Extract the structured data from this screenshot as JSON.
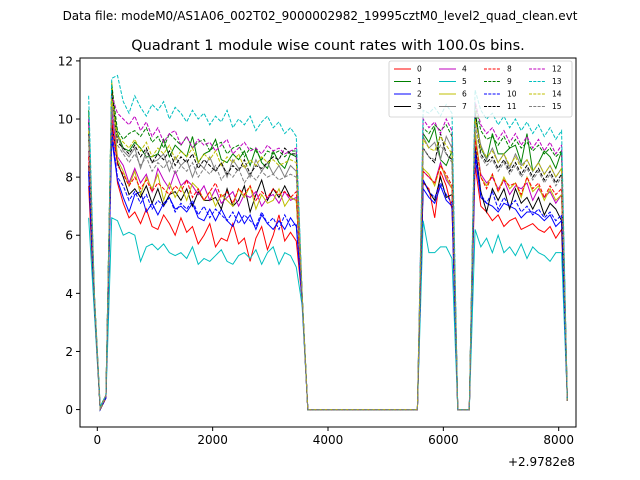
{
  "suptitle": "Data file: modeM0/AS1A06_002T02_9000002982_19995cztM0_level2_quad_clean.evt",
  "chart_data": {
    "type": "line",
    "title": "Quadrant 1 module wise count rates with 100.0s bins.",
    "xlabel": "",
    "ylabel": "",
    "x_offset_label": "+2.9782e8",
    "xlim": [
      -300,
      8300
    ],
    "ylim": [
      -0.6,
      12.1
    ],
    "xticks": [
      0,
      2000,
      4000,
      6000,
      8000
    ],
    "xtick_labels": [
      "0",
      "2000",
      "4000",
      "6000",
      "8000"
    ],
    "yticks": [
      0,
      2,
      4,
      6,
      8,
      10,
      12
    ],
    "ytick_labels": [
      "0",
      "2",
      "4",
      "6",
      "8",
      "10",
      "12"
    ],
    "legend_position": "top-right",
    "legend_columns": 4,
    "x": [
      -150,
      -50,
      50,
      150,
      250,
      350,
      450,
      550,
      650,
      750,
      850,
      950,
      1050,
      1150,
      1250,
      1350,
      1450,
      1550,
      1650,
      1750,
      1850,
      1950,
      2050,
      2150,
      2250,
      2350,
      2450,
      2550,
      2650,
      2750,
      2850,
      2950,
      3050,
      3150,
      3250,
      3350,
      3450,
      3550,
      3650,
      5550,
      5650,
      5750,
      5850,
      5950,
      6050,
      6150,
      6250,
      6350,
      6450,
      6550,
      6650,
      6750,
      6850,
      6950,
      7050,
      7150,
      7250,
      7350,
      7450,
      7550,
      7650,
      7750,
      7850,
      7950,
      8050,
      8150
    ],
    "series": [
      {
        "name": "0",
        "color": "#ff0000",
        "dash": false,
        "values": [
          7.7,
          3.5,
          0.0,
          0.4,
          9.7,
          7.8,
          7.1,
          6.6,
          6.8,
          6.4,
          6.9,
          6.3,
          6.2,
          6.7,
          6.4,
          6.0,
          6.6,
          6.1,
          6.3,
          5.7,
          6.0,
          6.4,
          5.6,
          5.9,
          5.8,
          6.4,
          5.7,
          5.9,
          5.1,
          5.9,
          6.3,
          5.5,
          6.0,
          6.7,
          5.8,
          6.1,
          5.8,
          3.8,
          0.0,
          0.0,
          7.8,
          7.6,
          6.6,
          8.2,
          7.7,
          6.9,
          0.0,
          0.0,
          0.0,
          8.4,
          7.0,
          6.8,
          6.5,
          6.7,
          6.3,
          6.5,
          6.6,
          6.2,
          6.3,
          6.4,
          6.2,
          6.1,
          6.3,
          5.9,
          6.2,
          0.3
        ]
      },
      {
        "name": "1",
        "color": "#008000",
        "dash": false,
        "values": [
          10.3,
          3.9,
          0.1,
          0.5,
          10.8,
          9.5,
          9.0,
          8.9,
          9.2,
          9.0,
          8.7,
          8.7,
          8.8,
          9.3,
          8.7,
          9.1,
          8.9,
          8.7,
          9.4,
          8.5,
          8.8,
          8.9,
          9.3,
          8.6,
          8.5,
          8.8,
          8.6,
          8.9,
          8.4,
          9.0,
          8.5,
          8.3,
          8.9,
          8.5,
          8.3,
          8.8,
          8.7,
          4.0,
          0.0,
          0.0,
          9.5,
          9.2,
          9.7,
          8.6,
          8.4,
          8.9,
          0.0,
          0.0,
          0.0,
          10.3,
          9.0,
          8.6,
          9.5,
          8.8,
          8.8,
          9.0,
          9.1,
          8.5,
          9.5,
          8.2,
          8.5,
          8.9,
          8.7,
          8.3,
          8.9,
          0.3
        ]
      },
      {
        "name": "2",
        "color": "#0000ff",
        "dash": false,
        "values": [
          8.1,
          3.7,
          0.0,
          0.4,
          9.3,
          7.9,
          7.3,
          6.8,
          7.4,
          7.5,
          6.8,
          7.1,
          6.7,
          7.1,
          7.3,
          6.9,
          7.0,
          6.8,
          7.1,
          6.6,
          6.5,
          6.9,
          6.5,
          6.9,
          6.5,
          6.3,
          6.8,
          6.4,
          6.7,
          6.2,
          6.7,
          6.4,
          6.2,
          6.5,
          6.2,
          6.6,
          6.3,
          3.8,
          0.0,
          0.0,
          7.6,
          7.3,
          7.1,
          7.7,
          7.2,
          7.0,
          0.0,
          0.0,
          0.0,
          8.7,
          7.3,
          7.1,
          7.0,
          6.8,
          7.1,
          7.0,
          6.9,
          6.6,
          6.8,
          6.8,
          6.7,
          6.5,
          6.7,
          6.3,
          6.5,
          0.3
        ]
      },
      {
        "name": "3",
        "color": "#000000",
        "dash": false,
        "values": [
          8.4,
          3.7,
          0.0,
          0.4,
          9.9,
          8.5,
          8.0,
          7.4,
          7.6,
          7.3,
          7.7,
          7.1,
          7.6,
          7.0,
          7.4,
          7.5,
          7.2,
          7.6,
          7.0,
          7.5,
          7.2,
          7.2,
          7.3,
          6.9,
          7.6,
          7.0,
          7.2,
          7.7,
          6.8,
          7.4,
          7.9,
          7.2,
          7.6,
          7.3,
          7.7,
          7.3,
          7.2,
          3.9,
          0.0,
          0.0,
          7.9,
          7.5,
          7.2,
          8.0,
          7.3,
          7.4,
          0.0,
          0.0,
          0.0,
          9.1,
          7.5,
          6.8,
          7.6,
          7.2,
          7.6,
          6.9,
          7.6,
          7.1,
          7.3,
          6.9,
          7.3,
          6.7,
          7.1,
          6.9,
          6.5,
          0.3
        ]
      },
      {
        "name": "4",
        "color": "#bf00bf",
        "dash": false,
        "values": [
          8.9,
          3.8,
          0.0,
          0.4,
          10.3,
          8.7,
          8.4,
          7.8,
          8.3,
          7.8,
          8.1,
          7.5,
          8.3,
          7.9,
          7.6,
          8.2,
          7.7,
          7.9,
          7.7,
          7.4,
          7.7,
          7.2,
          7.6,
          7.1,
          7.3,
          7.5,
          7.0,
          7.4,
          7.3,
          7.5,
          7.0,
          7.3,
          7.4,
          7.1,
          7.5,
          7.2,
          7.3,
          3.9,
          0.0,
          0.0,
          8.2,
          8.0,
          7.8,
          8.5,
          7.9,
          7.6,
          0.0,
          0.0,
          0.0,
          9.4,
          8.1,
          7.8,
          8.0,
          7.6,
          7.9,
          7.4,
          7.7,
          7.6,
          7.8,
          7.2,
          7.6,
          7.3,
          7.5,
          7.1,
          7.4,
          0.3
        ]
      },
      {
        "name": "5",
        "color": "#00bfbf",
        "dash": false,
        "values": [
          6.6,
          3.3,
          0.0,
          0.4,
          6.6,
          6.5,
          6.0,
          6.1,
          6.0,
          5.1,
          5.6,
          5.7,
          5.5,
          5.7,
          5.4,
          5.3,
          5.4,
          5.2,
          5.6,
          5.0,
          5.2,
          5.1,
          5.3,
          5.5,
          5.1,
          5.0,
          5.3,
          5.4,
          5.2,
          5.5,
          5.0,
          5.4,
          5.6,
          5.0,
          5.4,
          5.3,
          4.9,
          3.6,
          0.0,
          0.0,
          6.5,
          5.4,
          5.4,
          5.6,
          5.6,
          5.2,
          0.0,
          0.0,
          0.0,
          6.2,
          5.6,
          5.9,
          5.4,
          6.0,
          5.4,
          5.6,
          5.3,
          5.7,
          5.2,
          5.6,
          5.4,
          5.3,
          5.1,
          5.4,
          5.4,
          0.3
        ]
      },
      {
        "name": "6",
        "color": "#bfbf00",
        "dash": false,
        "values": [
          9.3,
          3.8,
          0.0,
          0.4,
          11.3,
          8.6,
          8.2,
          7.7,
          8.2,
          7.4,
          8.0,
          7.6,
          8.1,
          7.2,
          7.8,
          7.3,
          7.7,
          7.2,
          7.8,
          7.6,
          7.2,
          7.5,
          7.0,
          7.4,
          7.2,
          7.0,
          7.6,
          7.3,
          7.7,
          6.9,
          7.4,
          7.1,
          7.2,
          7.6,
          7.0,
          7.3,
          7.2,
          4.0,
          0.0,
          0.0,
          8.3,
          8.1,
          7.7,
          8.4,
          8.0,
          7.6,
          0.0,
          0.0,
          0.0,
          9.6,
          8.0,
          7.7,
          8.1,
          7.5,
          8.0,
          7.6,
          7.8,
          7.3,
          8.0,
          7.5,
          7.7,
          7.2,
          7.6,
          7.2,
          7.4,
          0.3
        ]
      },
      {
        "name": "7",
        "color": "#808080",
        "dash": false,
        "values": [
          9.9,
          3.9,
          0.0,
          0.5,
          10.5,
          9.4,
          8.9,
          8.7,
          9.0,
          8.3,
          8.9,
          8.5,
          8.6,
          8.8,
          8.2,
          8.7,
          8.4,
          8.6,
          8.0,
          8.5,
          8.3,
          8.7,
          8.2,
          8.5,
          8.0,
          8.6,
          8.3,
          8.4,
          8.0,
          8.6,
          8.2,
          8.5,
          8.1,
          8.4,
          8.0,
          8.4,
          8.2,
          4.0,
          0.0,
          0.0,
          9.4,
          9.0,
          9.2,
          8.6,
          9.4,
          9.0,
          0.0,
          0.0,
          0.0,
          10.0,
          9.1,
          8.6,
          9.0,
          8.5,
          8.8,
          8.3,
          8.8,
          8.4,
          8.6,
          8.2,
          8.5,
          8.1,
          8.4,
          8.0,
          8.3,
          0.3
        ]
      },
      {
        "name": "8",
        "color": "#ff0000",
        "dash": true,
        "values": [
          8.7,
          3.7,
          0.0,
          0.4,
          10.0,
          8.4,
          8.1,
          7.7,
          8.0,
          7.6,
          7.9,
          7.5,
          7.8,
          7.6,
          7.4,
          7.7,
          7.5,
          7.9,
          7.3,
          7.6,
          7.2,
          7.5,
          7.8,
          7.3,
          7.5,
          7.1,
          7.6,
          7.4,
          7.7,
          7.2,
          7.5,
          7.3,
          7.6,
          7.4,
          7.5,
          7.3,
          7.5,
          3.9,
          0.0,
          0.0,
          8.2,
          8.0,
          7.8,
          8.4,
          8.1,
          7.7,
          0.0,
          0.0,
          0.0,
          9.3,
          8.0,
          7.6,
          8.1,
          7.5,
          7.9,
          7.7,
          7.8,
          7.4,
          8.0,
          7.6,
          7.8,
          7.3,
          7.7,
          7.4,
          7.6,
          0.3
        ]
      },
      {
        "name": "9",
        "color": "#008000",
        "dash": true,
        "values": [
          9.9,
          3.9,
          0.0,
          0.5,
          11.2,
          9.6,
          9.3,
          9.5,
          9.6,
          9.4,
          9.7,
          9.2,
          9.4,
          9.0,
          9.5,
          9.3,
          9.1,
          9.4,
          9.0,
          9.2,
          9.3,
          8.9,
          9.1,
          9.2,
          8.8,
          9.0,
          9.1,
          8.7,
          9.0,
          8.9,
          8.6,
          8.9,
          8.8,
          8.9,
          8.7,
          8.9,
          8.9,
          4.0,
          0.0,
          0.0,
          9.7,
          9.5,
          9.8,
          9.6,
          9.8,
          9.4,
          0.0,
          0.0,
          0.0,
          10.5,
          9.6,
          9.3,
          9.4,
          9.1,
          9.4,
          9.0,
          9.3,
          9.0,
          9.2,
          8.9,
          9.1,
          8.8,
          9.0,
          8.7,
          8.9,
          0.3
        ]
      },
      {
        "name": "10",
        "color": "#0000ff",
        "dash": true,
        "values": [
          8.2,
          3.7,
          0.0,
          0.4,
          9.6,
          8.0,
          7.7,
          7.2,
          7.5,
          7.1,
          7.4,
          6.9,
          7.2,
          7.0,
          7.3,
          6.8,
          7.1,
          6.9,
          7.2,
          6.7,
          7.0,
          6.6,
          6.9,
          6.7,
          6.5,
          6.8,
          6.4,
          6.7,
          6.5,
          6.3,
          6.8,
          6.4,
          6.6,
          6.2,
          6.7,
          6.3,
          6.4,
          3.8,
          0.0,
          0.0,
          7.9,
          7.5,
          7.3,
          7.8,
          7.4,
          7.1,
          0.0,
          0.0,
          0.0,
          8.9,
          7.4,
          7.1,
          7.5,
          6.9,
          7.3,
          7.0,
          7.2,
          6.8,
          7.0,
          6.7,
          6.9,
          6.6,
          6.8,
          6.5,
          6.7,
          0.3
        ]
      },
      {
        "name": "11",
        "color": "#000000",
        "dash": true,
        "values": [
          9.5,
          3.8,
          0.0,
          0.5,
          11.0,
          9.2,
          9.0,
          8.8,
          9.1,
          8.7,
          9.0,
          8.5,
          8.8,
          8.6,
          8.9,
          8.4,
          8.7,
          8.5,
          8.8,
          8.3,
          8.6,
          8.4,
          8.2,
          8.5,
          8.1,
          8.4,
          8.2,
          8.6,
          8.1,
          8.4,
          8.3,
          8.5,
          8.7,
          8.6,
          9.0,
          8.8,
          8.8,
          4.0,
          0.0,
          0.0,
          9.0,
          8.7,
          8.5,
          9.5,
          8.8,
          8.6,
          0.0,
          0.0,
          0.0,
          10.2,
          8.8,
          8.5,
          8.7,
          8.3,
          8.6,
          8.2,
          8.5,
          8.1,
          8.4,
          8.0,
          8.3,
          7.9,
          8.2,
          7.8,
          8.1,
          0.3
        ]
      },
      {
        "name": "12",
        "color": "#bf00bf",
        "dash": true,
        "values": [
          10.0,
          3.9,
          0.0,
          0.5,
          10.8,
          10.2,
          10.0,
          9.8,
          10.1,
          9.6,
          9.9,
          9.4,
          9.7,
          9.2,
          9.5,
          9.6,
          9.1,
          9.4,
          9.0,
          9.3,
          9.1,
          9.2,
          8.9,
          9.1,
          9.3,
          8.8,
          9.0,
          9.2,
          8.9,
          9.0,
          8.8,
          9.1,
          8.9,
          9.0,
          8.8,
          8.9,
          9.0,
          4.0,
          0.0,
          0.0,
          10.0,
          9.7,
          9.9,
          9.5,
          10.0,
          9.6,
          0.0,
          0.0,
          0.0,
          10.6,
          9.8,
          9.5,
          9.7,
          9.3,
          9.6,
          9.2,
          9.5,
          9.1,
          9.4,
          9.0,
          9.3,
          8.9,
          9.2,
          8.8,
          9.1,
          0.3
        ]
      },
      {
        "name": "13",
        "color": "#00bfbf",
        "dash": true,
        "values": [
          10.8,
          4.0,
          0.1,
          0.5,
          11.4,
          11.5,
          10.6,
          10.2,
          10.8,
          10.4,
          10.1,
          10.5,
          10.3,
          10.6,
          10.0,
          10.4,
          10.2,
          9.9,
          10.3,
          10.0,
          10.2,
          9.8,
          10.1,
          9.9,
          10.3,
          9.7,
          10.0,
          9.8,
          10.1,
          9.6,
          9.9,
          10.1,
          9.7,
          9.9,
          9.5,
          9.7,
          9.4,
          4.1,
          0.0,
          0.0,
          10.3,
          10.2,
          10.4,
          10.1,
          10.5,
          10.2,
          0.0,
          0.0,
          0.0,
          11.0,
          10.3,
          10.0,
          10.2,
          9.8,
          10.1,
          9.7,
          10.0,
          9.6,
          9.9,
          9.5,
          9.8,
          9.4,
          9.7,
          9.3,
          9.6,
          0.3
        ]
      },
      {
        "name": "14",
        "color": "#bfbf00",
        "dash": true,
        "values": [
          9.6,
          3.9,
          0.0,
          0.5,
          10.7,
          9.4,
          9.2,
          9.0,
          9.3,
          8.9,
          9.2,
          8.7,
          9.0,
          8.8,
          9.1,
          8.6,
          8.9,
          8.7,
          9.0,
          8.5,
          8.8,
          8.6,
          8.9,
          8.4,
          8.7,
          8.5,
          8.8,
          8.3,
          8.6,
          8.4,
          8.7,
          8.5,
          8.6,
          8.4,
          8.5,
          8.6,
          8.5,
          4.0,
          0.0,
          0.0,
          9.3,
          9.0,
          8.9,
          9.4,
          9.1,
          8.8,
          0.0,
          0.0,
          0.0,
          10.0,
          9.0,
          8.7,
          8.9,
          8.5,
          8.8,
          8.4,
          8.7,
          8.3,
          8.6,
          8.2,
          8.5,
          8.1,
          8.4,
          8.0,
          8.3,
          0.3
        ]
      },
      {
        "name": "15",
        "color": "#808080",
        "dash": true,
        "values": [
          9.4,
          3.8,
          0.0,
          0.5,
          10.4,
          9.1,
          8.8,
          8.5,
          8.8,
          8.4,
          8.7,
          8.2,
          8.5,
          8.3,
          8.6,
          8.1,
          8.4,
          8.2,
          8.5,
          8.0,
          8.3,
          8.1,
          8.4,
          7.9,
          8.2,
          8.0,
          8.3,
          7.8,
          8.1,
          7.9,
          8.2,
          8.0,
          8.1,
          7.9,
          8.0,
          8.1,
          8.0,
          3.9,
          0.0,
          0.0,
          9.0,
          8.7,
          8.6,
          9.1,
          8.8,
          8.5,
          0.0,
          0.0,
          0.0,
          9.8,
          8.7,
          8.4,
          8.6,
          8.2,
          8.5,
          8.1,
          8.4,
          8.0,
          8.3,
          7.9,
          8.2,
          7.8,
          8.1,
          7.7,
          8.0,
          0.3
        ]
      }
    ]
  }
}
